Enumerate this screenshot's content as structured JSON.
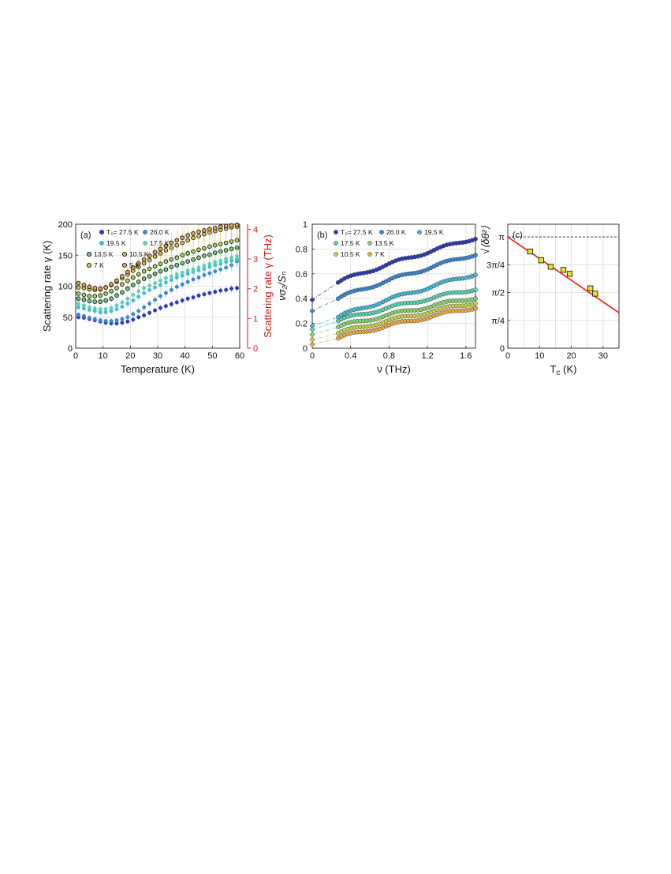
{
  "chart_data": [
    {
      "panel": "(a)",
      "type": "scatter",
      "xlabel": "Temperature (K)",
      "ylabel": "Scattering rate γ (K)",
      "ylabel_right": "Scattering rate γ (THz)",
      "xlim": [
        0,
        60
      ],
      "ylim": [
        0,
        200
      ],
      "ylim_right": [
        0,
        4.17
      ],
      "xticks": [
        "0",
        "10",
        "20",
        "30",
        "40",
        "50",
        "60"
      ],
      "yticks": [
        "0",
        "50",
        "100",
        "150",
        "200"
      ],
      "yticks_right": [
        "0",
        "1",
        "2",
        "3",
        "4"
      ],
      "grid": true,
      "legend_title_prefix": "T",
      "legend_labels": [
        "T₀= 27.5 K",
        "26.0 K",
        "19.5 K",
        "17.5 K",
        "13.5 K",
        "10.5 K",
        "7 K",
        "5 K"
      ],
      "series": [
        {
          "name": "T₀= 27.5 K",
          "color": "#2c3bb5",
          "marker": "solid",
          "x": [
            1,
            3,
            5,
            7,
            9,
            11,
            13,
            15,
            17,
            19,
            21,
            23,
            25,
            27,
            29,
            31,
            33,
            35,
            37,
            39,
            41,
            43,
            45,
            47,
            49,
            51,
            53,
            55,
            57,
            59
          ],
          "y": [
            50,
            49,
            47,
            45,
            43,
            41,
            40,
            40,
            41,
            43,
            46,
            50,
            53,
            57,
            61,
            65,
            68,
            71,
            74,
            77,
            80,
            82,
            85,
            87,
            89,
            91,
            93,
            94,
            96,
            97
          ]
        },
        {
          "name": "26.0 K",
          "color": "#3a86d0",
          "marker": "solid",
          "x": [
            1,
            3,
            5,
            7,
            9,
            11,
            13,
            15,
            17,
            19,
            21,
            23,
            25,
            27,
            29,
            31,
            33,
            35,
            37,
            39,
            41,
            43,
            45,
            47,
            49,
            51,
            53,
            55,
            57,
            59
          ],
          "y": [
            54,
            52,
            49,
            47,
            45,
            44,
            44,
            45,
            47,
            50,
            55,
            60,
            66,
            72,
            78,
            84,
            89,
            94,
            99,
            103,
            107,
            111,
            114,
            118,
            121,
            124,
            127,
            130,
            134,
            140
          ]
        },
        {
          "name": "19.5 K",
          "color": "#46b8d6",
          "marker": "solid",
          "x": [
            1,
            3,
            5,
            7,
            9,
            11,
            13,
            15,
            17,
            19,
            21,
            23,
            25,
            27,
            29,
            31,
            33,
            35,
            37,
            39,
            41,
            43,
            45,
            47,
            49,
            51,
            53,
            55,
            57,
            59
          ],
          "y": [
            66,
            64,
            62,
            60,
            58,
            58,
            60,
            63,
            67,
            72,
            77,
            83,
            89,
            94,
            98,
            102,
            106,
            110,
            114,
            117,
            120,
            123,
            126,
            128,
            131,
            134,
            136,
            139,
            141,
            143
          ]
        },
        {
          "name": "17.5 K",
          "color": "#5cd0b0",
          "marker": "solid",
          "x": [
            1,
            3,
            5,
            7,
            9,
            11,
            13,
            15,
            17,
            19,
            21,
            23,
            25,
            27,
            29,
            31,
            33,
            35,
            37,
            39,
            41,
            43,
            45,
            47,
            49,
            51,
            53,
            55,
            57,
            59
          ],
          "y": [
            72,
            69,
            66,
            64,
            63,
            63,
            65,
            69,
            74,
            80,
            86,
            92,
            97,
            101,
            105,
            109,
            113,
            116,
            119,
            122,
            125,
            127,
            130,
            133,
            136,
            139,
            141,
            144,
            146,
            148
          ]
        },
        {
          "name": "13.5 K",
          "color": "#72c882",
          "marker": "ring",
          "x": [
            1,
            3,
            5,
            7,
            9,
            11,
            13,
            15,
            17,
            19,
            21,
            23,
            25,
            27,
            29,
            31,
            33,
            35,
            37,
            39,
            41,
            43,
            45,
            47,
            49,
            51,
            53,
            55,
            57,
            59
          ],
          "y": [
            80,
            78,
            76,
            75,
            75,
            77,
            80,
            85,
            90,
            96,
            102,
            107,
            112,
            116,
            120,
            124,
            127,
            131,
            134,
            137,
            140,
            143,
            146,
            149,
            151,
            154,
            156,
            158,
            160,
            162
          ]
        },
        {
          "name": "10.5 K",
          "color": "#a6d65a",
          "marker": "ring",
          "x": [
            1,
            3,
            5,
            7,
            9,
            11,
            13,
            15,
            17,
            19,
            21,
            23,
            25,
            27,
            29,
            31,
            33,
            35,
            37,
            39,
            41,
            43,
            45,
            47,
            49,
            51,
            53,
            55,
            57,
            59
          ],
          "y": [
            88,
            86,
            84,
            84,
            85,
            88,
            92,
            97,
            103,
            109,
            114,
            119,
            124,
            128,
            132,
            136,
            140,
            143,
            146,
            150,
            153,
            156,
            159,
            161,
            164,
            166,
            168,
            170,
            172,
            174
          ]
        },
        {
          "name": "7 K",
          "color": "#d8c840",
          "marker": "ring",
          "x": [
            1,
            3,
            5,
            7,
            9,
            11,
            13,
            15,
            17,
            19,
            21,
            23,
            25,
            27,
            29,
            31,
            33,
            35,
            37,
            39,
            41,
            43,
            45,
            47,
            49,
            51,
            53,
            55,
            57,
            59
          ],
          "y": [
            98,
            97,
            95,
            94,
            95,
            98,
            102,
            107,
            113,
            119,
            125,
            131,
            137,
            142,
            148,
            153,
            158,
            162,
            166,
            170,
            174,
            178,
            181,
            184,
            187,
            189,
            191,
            193,
            195,
            196
          ]
        },
        {
          "name": "5 K",
          "color": "#e6a84a",
          "marker": "ring",
          "x": [
            1,
            3,
            5,
            7,
            9,
            11,
            13,
            15,
            17,
            19,
            21,
            23,
            25,
            27,
            29,
            31,
            33,
            35,
            37,
            39,
            41,
            43,
            45,
            47,
            49,
            51,
            53,
            55,
            57,
            59
          ],
          "y": [
            105,
            102,
            99,
            97,
            96,
            98,
            103,
            109,
            116,
            123,
            130,
            137,
            143,
            149,
            155,
            160,
            165,
            170,
            174,
            178,
            182,
            185,
            188,
            190,
            192,
            194,
            196,
            197,
            198,
            199
          ]
        }
      ]
    },
    {
      "panel": "(b)",
      "type": "scatter",
      "xlabel": "ν (THz)",
      "ylabel": "νσ₂/Sₙ",
      "xlim": [
        0,
        1.7
      ],
      "ylim": [
        0,
        1
      ],
      "xticks": [
        "0",
        "0.4",
        "0.8",
        "1.2",
        "1.6"
      ],
      "yticks": [
        "0",
        "0.2",
        "0.4",
        "0.6",
        "0.8",
        "1"
      ],
      "grid": true,
      "legend_labels": [
        "T₀= 27.5 K",
        "26.0 K",
        "19.5 K",
        "17.5 K",
        "13.5 K",
        "10.5 K",
        "7 K"
      ],
      "series": [
        {
          "name": "T₀= 27.5 K",
          "color": "#2c3bb5",
          "y0": 0.39,
          "start": 0.53,
          "end": 0.89
        },
        {
          "name": "26.0 K",
          "color": "#3a86d0",
          "y0": 0.3,
          "start": 0.4,
          "end": 0.76
        },
        {
          "name": "19.5 K",
          "color": "#46b8d6",
          "y0": 0.18,
          "start": 0.25,
          "end": 0.6
        },
        {
          "name": "17.5 K",
          "color": "#5cd0b0",
          "y0": 0.15,
          "start": 0.22,
          "end": 0.48
        },
        {
          "name": "13.5 K",
          "color": "#88d070",
          "y0": 0.11,
          "start": 0.17,
          "end": 0.41
        },
        {
          "name": "10.5 K",
          "color": "#c8d050",
          "y0": 0.07,
          "start": 0.12,
          "end": 0.37
        },
        {
          "name": "7 K",
          "color": "#e8a848",
          "y0": 0.03,
          "start": 0.08,
          "end": 0.33
        }
      ],
      "x_start": 0.27,
      "x_end": 1.7
    },
    {
      "panel": "(c)",
      "type": "scatter",
      "xlabel": "T_c (K)",
      "xlabel_main": "T",
      "xlabel_sub": "c",
      "xlabel_unit": "(K)",
      "ylabel": "√⟨δθ²⟩",
      "xlim": [
        0,
        35
      ],
      "ylim": [
        0,
        3.5
      ],
      "xticks": [
        "0",
        "10",
        "20",
        "30"
      ],
      "yticks": [
        "0",
        "π/4",
        "π/2",
        "3π/4",
        "π"
      ],
      "ytick_values": [
        0,
        0.785,
        1.571,
        2.356,
        3.142
      ],
      "grid": true,
      "dashed_reference": 3.142,
      "fit_line": {
        "x": [
          0,
          35
        ],
        "y": [
          3.14,
          1.0
        ]
      },
      "marker_color": "#e6e020",
      "points": {
        "x": [
          7,
          10.5,
          13.5,
          17.5,
          19.5,
          26,
          27.5
        ],
        "y": [
          2.73,
          2.48,
          2.3,
          2.21,
          2.1,
          1.69,
          1.54
        ]
      }
    }
  ]
}
